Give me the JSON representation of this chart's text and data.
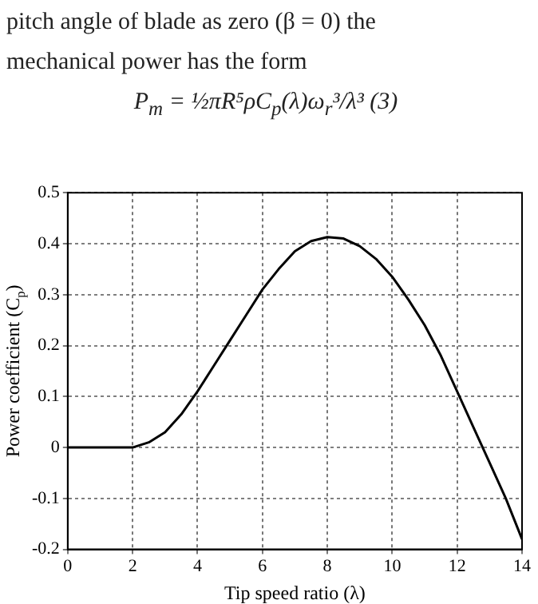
{
  "chart_data": {
    "type": "line",
    "annotations": [
      "pitch angle of blade as zero (β = 0) the",
      "mechanical power has the form",
      "P$_{m}$ = ½πR⁵ρC$_{p}$(λ)ω$_{r}$³/λ³     (3)"
    ],
    "xlabel": "Tip speed ratio (λ)",
    "ylabel": "Power coefficient (C$_{p}$)",
    "x": [
      0,
      0.5,
      1,
      1.5,
      2,
      2.5,
      3,
      3.5,
      4,
      4.5,
      5,
      5.5,
      6,
      6.5,
      7,
      7.5,
      8,
      8.5,
      9,
      9.5,
      10,
      10.5,
      11,
      11.5,
      12,
      12.5,
      13,
      13.5,
      14
    ],
    "series": [
      {
        "color": "#000000",
        "values": [
          0,
          0,
          0,
          0,
          0,
          0.01,
          0.03,
          0.065,
          0.11,
          0.16,
          0.21,
          0.26,
          0.31,
          0.35,
          0.385,
          0.405,
          0.413,
          0.41,
          0.395,
          0.37,
          0.335,
          0.29,
          0.24,
          0.18,
          0.11,
          0.04,
          -0.03,
          -0.1,
          -0.18
        ]
      }
    ],
    "xlim": [
      0,
      14
    ],
    "xticks": [
      0,
      2,
      4,
      6,
      8,
      10,
      12,
      14
    ],
    "ylim": [
      -0.2,
      0.5
    ],
    "yticks": [
      -0.2,
      -0.1,
      0,
      0.1,
      0.2,
      0.3,
      0.4,
      0.5
    ],
    "grid": true,
    "marker": "none",
    "line_style": "solid"
  }
}
